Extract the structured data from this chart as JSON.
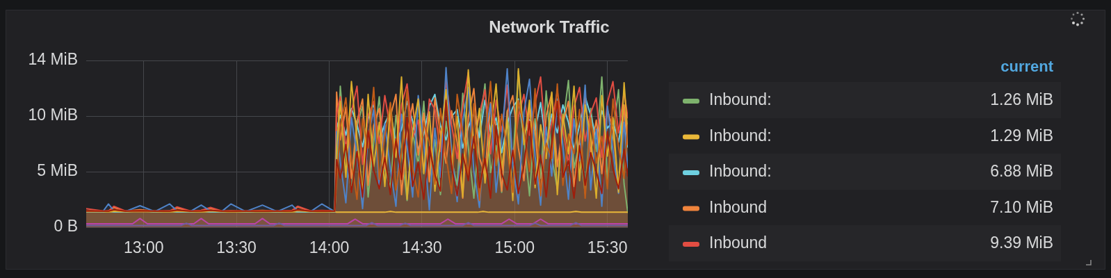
{
  "chart_data": {
    "type": "area",
    "title": "Network Traffic",
    "x": [
      12.69,
      12.78,
      12.81,
      12.84,
      12.9,
      12.98,
      13.06,
      13.14,
      13.18,
      13.25,
      13.31,
      13.36,
      13.42,
      13.47,
      13.55,
      13.64,
      13.72,
      13.8,
      13.83,
      13.9,
      13.96,
      14.03,
      14.04,
      14.06,
      14.09,
      14.12,
      14.15,
      14.18,
      14.21,
      14.24,
      14.27,
      14.3,
      14.33,
      14.36,
      14.39,
      14.42,
      14.45,
      14.48,
      14.51,
      14.54,
      14.57,
      14.6,
      14.63,
      14.66,
      14.69,
      14.72,
      14.75,
      14.78,
      14.81,
      14.84,
      14.87,
      14.9,
      14.93,
      14.96,
      14.99,
      15.02,
      15.05,
      15.08,
      15.11,
      15.14,
      15.17,
      15.2,
      15.23,
      15.26,
      15.29,
      15.32,
      15.35,
      15.38,
      15.41,
      15.44,
      15.47,
      15.5,
      15.53,
      15.56,
      15.59,
      15.61
    ],
    "xlim": [
      12.69,
      15.61
    ],
    "xticks": [
      {
        "value": 13,
        "label": "13:00"
      },
      {
        "value": 13.5,
        "label": "13:30"
      },
      {
        "value": 14,
        "label": "14:00"
      },
      {
        "value": 14.5,
        "label": "14:30"
      },
      {
        "value": 15,
        "label": "15:00"
      },
      {
        "value": 15.5,
        "label": "15:30"
      }
    ],
    "ylim": [
      0,
      14.31
    ],
    "yticks": [
      {
        "value": 0,
        "label": "0 B"
      },
      {
        "value": 4.77,
        "label": "5 MiB"
      },
      {
        "value": 9.54,
        "label": "10 MiB"
      },
      {
        "value": 14.31,
        "label": "14 MiB"
      }
    ],
    "grid": true,
    "legend": "right",
    "legend_title": "current",
    "marker": "none",
    "annotations": [
      "1.26 MiB",
      "1.29 MiB",
      "6.88 MiB",
      "7.10 MiB",
      "9.39 MiB"
    ],
    "series": [
      {
        "name": "Inbound:",
        "color": "#7eb26d",
        "values": [
          1.32,
          1.32,
          1.36,
          1.32,
          1.32,
          1.4,
          1.32,
          1.36,
          1.32,
          1.32,
          1.36,
          1.32,
          1.32,
          1.38,
          1.32,
          1.36,
          1.32,
          1.36,
          1.32,
          1.32,
          1.36,
          1.32,
          4.5,
          12.1,
          6.2,
          3.1,
          8.7,
          10.4,
          2.6,
          7.3,
          11.2,
          5.0,
          3.4,
          9.6,
          6.7,
          2.3,
          8.2,
          5.3,
          10.8,
          4.0,
          7.5,
          2.8,
          9.1,
          5.8,
          3.6,
          11.5,
          6.9,
          2.5,
          8.4,
          12.3,
          4.7,
          7.0,
          3.0,
          10.0,
          5.5,
          13.4,
          7.7,
          2.7,
          9.3,
          4.2,
          11.7,
          6.0,
          3.3,
          8.8,
          12.6,
          5.1,
          7.2,
          2.9,
          10.2,
          6.5,
          12.9,
          4.1,
          8.0,
          11.8,
          3.7,
          1.26
        ]
      },
      {
        "name": "Inbound:",
        "color": "#eab839",
        "x": [
          12.69,
          14.03,
          14.04,
          14.3,
          14.33,
          14.36,
          14.8,
          14.83,
          14.86,
          15.3,
          15.33,
          15.36,
          15.61
        ],
        "values": [
          1.34,
          1.34,
          1.29,
          1.29,
          1.36,
          1.29,
          1.29,
          1.36,
          1.29,
          1.29,
          1.35,
          1.29,
          1.29
        ]
      },
      {
        "name": "Inbound:",
        "color": "#6ed0e0",
        "values": [
          1.33,
          1.33,
          1.4,
          1.33,
          1.33,
          1.45,
          1.33,
          1.4,
          1.33,
          1.33,
          1.4,
          1.33,
          1.33,
          1.4,
          1.33,
          1.4,
          1.33,
          1.4,
          1.33,
          1.33,
          1.4,
          1.33,
          8.5,
          9.6,
          7.9,
          10.2,
          8.8,
          6.9,
          9.3,
          10.6,
          7.4,
          8.9,
          9.9,
          7.2,
          8.4,
          10.8,
          9.1,
          6.6,
          8.0,
          10.4,
          11.4,
          8.7,
          7.5,
          9.5,
          10.1,
          6.8,
          8.6,
          9.8,
          7.7,
          10.9,
          8.2,
          9.4,
          6.4,
          8.9,
          10.3,
          11.0,
          7.8,
          9.2,
          8.3,
          10.7,
          7.0,
          9.7,
          8.1,
          10.5,
          9.0,
          6.7,
          8.8,
          11.2,
          9.6,
          7.6,
          10.0,
          8.5,
          9.1,
          7.3,
          10.2,
          6.88
        ]
      },
      {
        "name": "Inbound",
        "color": "#ef843c",
        "values": [
          1.4,
          1.38,
          1.4,
          1.7,
          1.38,
          1.5,
          1.38,
          1.4,
          1.65,
          1.38,
          1.45,
          1.6,
          1.38,
          1.4,
          1.38,
          1.45,
          1.38,
          1.4,
          1.75,
          1.38,
          1.4,
          1.38,
          11.6,
          7.5,
          10.3,
          4.2,
          9.1,
          11.0,
          3.6,
          8.7,
          10.2,
          5.0,
          9.5,
          11.4,
          2.8,
          7.9,
          10.6,
          6.2,
          9.8,
          3.9,
          11.1,
          8.0,
          5.5,
          10.0,
          7.3,
          2.5,
          9.4,
          11.9,
          6.0,
          4.4,
          10.7,
          8.6,
          3.1,
          9.9,
          11.3,
          6.8,
          4.0,
          10.4,
          8.3,
          2.7,
          9.6,
          11.5,
          5.2,
          8.9,
          10.8,
          3.5,
          7.6,
          11.2,
          6.4,
          9.2,
          4.6,
          10.1,
          8.4,
          3.3,
          10.5,
          7.1
        ]
      },
      {
        "name": "Inbound",
        "color": "#e24d42",
        "values": [
          1.6,
          1.4,
          1.4,
          1.8,
          1.4,
          1.45,
          1.4,
          1.4,
          1.75,
          1.4,
          1.45,
          1.7,
          1.4,
          1.4,
          1.4,
          1.4,
          1.4,
          1.45,
          1.8,
          1.4,
          1.45,
          1.4,
          9.8,
          11.2,
          6.8,
          9.9,
          12.1,
          5.4,
          9.6,
          10.8,
          7.2,
          11.3,
          8.4,
          6.1,
          10.5,
          12.3,
          7.7,
          9.2,
          4.8,
          11.0,
          10.1,
          6.5,
          12.6,
          8.8,
          5.9,
          10.4,
          13.3,
          7.1,
          9.7,
          11.8,
          6.3,
          10.9,
          8.2,
          12.2,
          5.6,
          9.5,
          11.4,
          7.9,
          10.6,
          12.9,
          6.7,
          9.0,
          11.7,
          8.5,
          5.3,
          10.3,
          12.0,
          7.4,
          9.8,
          11.1,
          6.0,
          10.7,
          12.5,
          8.1,
          11.6,
          9.39
        ]
      },
      {
        "color": "#ba43a9",
        "x": [
          12.69,
          12.94,
          12.98,
          13.02,
          13.27,
          13.31,
          13.35,
          13.6,
          13.64,
          13.68,
          14.1,
          14.14,
          14.18,
          14.6,
          14.64,
          14.68,
          14.93,
          14.97,
          15.01,
          15.1,
          15.14,
          15.18,
          15.61
        ],
        "values": [
          0.3,
          0.3,
          0.75,
          0.3,
          0.3,
          0.75,
          0.3,
          0.3,
          0.75,
          0.3,
          0.3,
          0.7,
          0.3,
          0.3,
          0.7,
          0.3,
          0.3,
          0.7,
          0.3,
          0.3,
          0.7,
          0.3,
          0.3
        ]
      },
      {
        "type": "line",
        "color": "#705da0",
        "x": [
          12.69,
          13.2,
          13.23,
          13.26,
          13.7,
          13.73,
          13.76,
          14.2,
          14.23,
          14.26,
          14.38,
          14.41,
          14.44,
          14.72,
          14.75,
          14.78,
          15.08,
          15.11,
          15.14,
          15.3,
          15.33,
          15.36,
          15.61
        ],
        "values": [
          0.15,
          0.15,
          0.35,
          0.15,
          0.15,
          0.35,
          0.15,
          0.15,
          0.4,
          0.15,
          0.15,
          0.35,
          0.15,
          0.15,
          0.4,
          0.15,
          0.15,
          0.35,
          0.15,
          0.15,
          0.4,
          0.15,
          0.15
        ]
      },
      {
        "color": "#4f83c8",
        "values": [
          1.35,
          1.35,
          2.0,
          1.4,
          1.35,
          1.85,
          1.35,
          2.0,
          1.4,
          1.35,
          1.9,
          1.4,
          1.35,
          2.0,
          1.35,
          1.9,
          1.35,
          1.9,
          1.4,
          1.35,
          2.0,
          1.35,
          8.2,
          5.6,
          2.1,
          9.4,
          6.3,
          1.6,
          7.8,
          10.1,
          3.4,
          8.9,
          5.0,
          1.8,
          9.7,
          6.9,
          2.6,
          11.3,
          7.2,
          1.5,
          8.5,
          4.3,
          13.7,
          6.4,
          2.2,
          9.1,
          12.0,
          4.8,
          1.7,
          8.0,
          10.6,
          3.0,
          7.5,
          13.6,
          5.3,
          2.0,
          9.9,
          12.7,
          6.1,
          1.9,
          8.6,
          4.4,
          11.0,
          7.0,
          2.4,
          9.3,
          5.7,
          12.2,
          3.2,
          8.4,
          1.8,
          10.4,
          6.6,
          2.9,
          9.0,
          5.1
        ]
      },
      {
        "color": "#dbae2c",
        "values": [
          1.34,
          1.34,
          1.34,
          1.38,
          1.34,
          1.42,
          1.34,
          1.34,
          1.38,
          1.34,
          1.34,
          1.4,
          1.34,
          1.34,
          1.34,
          1.38,
          1.34,
          1.34,
          1.42,
          1.34,
          1.34,
          1.34,
          6.9,
          10.8,
          4.3,
          12.5,
          7.6,
          2.9,
          11.4,
          5.2,
          9.0,
          3.5,
          10.6,
          6.0,
          12.9,
          2.4,
          8.3,
          11.0,
          4.6,
          9.9,
          3.1,
          7.4,
          11.8,
          5.4,
          9.5,
          2.6,
          13.5,
          6.8,
          10.2,
          3.8,
          8.1,
          12.3,
          4.9,
          9.2,
          2.3,
          13.6,
          7.1,
          10.9,
          3.4,
          8.8,
          5.9,
          11.6,
          2.8,
          9.7,
          6.3,
          12.1,
          4.0,
          10.5,
          7.8,
          2.5,
          11.3,
          6.1,
          9.4,
          3.0,
          12.4,
          7.9
        ]
      },
      {
        "color": "#c15c17",
        "values": [
          1.38,
          1.38,
          1.38,
          1.5,
          1.38,
          1.42,
          1.38,
          1.38,
          1.45,
          1.38,
          1.38,
          1.44,
          1.38,
          1.38,
          1.38,
          1.38,
          1.38,
          1.38,
          1.48,
          1.38,
          1.38,
          1.38,
          3.9,
          8.6,
          11.1,
          5.7,
          2.4,
          9.3,
          6.8,
          12.0,
          4.1,
          7.9,
          10.7,
          3.2,
          6.4,
          11.8,
          5.1,
          2.6,
          9.0,
          7.3,
          3.7,
          10.2,
          6.1,
          2.9,
          11.4,
          8.2,
          4.5,
          10.6,
          2.3,
          7.6,
          12.5,
          5.3,
          9.7,
          6.6,
          3.0,
          10.9,
          8.5,
          4.8,
          11.9,
          2.7,
          7.2,
          5.9,
          12.3,
          3.6,
          8.0,
          6.3,
          10.1,
          2.5,
          9.4,
          5.5,
          7.8,
          3.3,
          11.0,
          6.9,
          4.2,
          8.8
        ]
      },
      {
        "color": "#9f1d0b",
        "values": [
          1.4,
          1.38,
          1.38,
          1.5,
          1.38,
          1.42,
          1.38,
          1.38,
          1.48,
          1.38,
          1.4,
          1.46,
          1.38,
          1.38,
          1.38,
          1.38,
          1.38,
          1.4,
          1.5,
          1.38,
          1.4,
          1.38,
          5.8,
          4.2,
          7.1,
          3.0,
          6.5,
          2.6,
          8.3,
          4.9,
          3.3,
          6.0,
          2.8,
          7.6,
          4.1,
          9.4,
          3.5,
          5.6,
          2.4,
          6.9,
          4.5,
          3.1,
          10.9,
          5.2,
          2.7,
          6.3,
          4.0,
          7.8,
          3.4,
          5.9,
          2.5,
          8.7,
          4.6,
          3.2,
          6.6,
          2.9,
          5.4,
          9.1,
          3.7,
          6.2,
          2.6,
          7.3,
          10.8,
          4.3,
          5.7,
          2.5,
          7.0,
          3.6,
          6.4,
          4.8,
          2.9,
          8.2,
          5.0,
          3.3,
          6.7,
          4.4
        ]
      }
    ]
  }
}
